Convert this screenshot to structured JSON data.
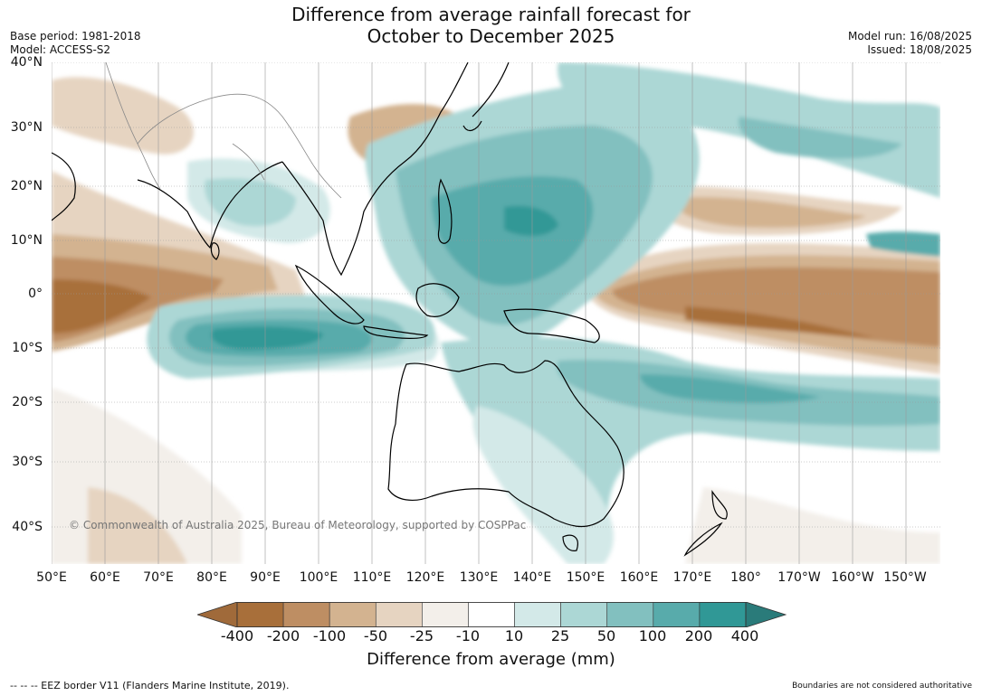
{
  "title_line1": "Difference from average rainfall forecast for",
  "title_line2": "October to December 2025",
  "meta_left": [
    "Base period: 1981-2018",
    "Model: ACCESS-S2"
  ],
  "meta_right": [
    "Model run: 16/08/2025",
    "Issued: 18/08/2025"
  ],
  "lat_labels": [
    "40°N",
    "30°N",
    "20°N",
    "10°N",
    "0°",
    "10°S",
    "20°S",
    "30°S",
    "40°S"
  ],
  "lon_labels": [
    "50°E",
    "60°E",
    "70°E",
    "80°E",
    "90°E",
    "100°E",
    "110°E",
    "120°E",
    "130°E",
    "140°E",
    "150°E",
    "160°E",
    "170°E",
    "180°",
    "170°W",
    "160°W",
    "150°W"
  ],
  "copyright": "© Commonwealth of Australia 2025, Bureau of Meteorology, supported by COSPPac",
  "colorbar": {
    "ticks": [
      "-400",
      "-200",
      "-100",
      "-50",
      "-25",
      "-10",
      "10",
      "25",
      "50",
      "100",
      "200",
      "400"
    ],
    "colors": [
      "#a86f3a",
      "#be8e63",
      "#d3b390",
      "#e6d4c1",
      "#f3efea",
      "#ffffff",
      "#d3e9e8",
      "#acd7d5",
      "#82c0bf",
      "#58abab",
      "#309896"
    ],
    "low_extend_color": "#a06a3a",
    "high_extend_color": "#2a7b7a",
    "label": "Difference from average (mm)"
  },
  "footer_left": "--  --  -- EEZ border V11 (Flanders Marine Institute, 2019).",
  "footer_right": "Boundaries are not considered authoritative"
}
